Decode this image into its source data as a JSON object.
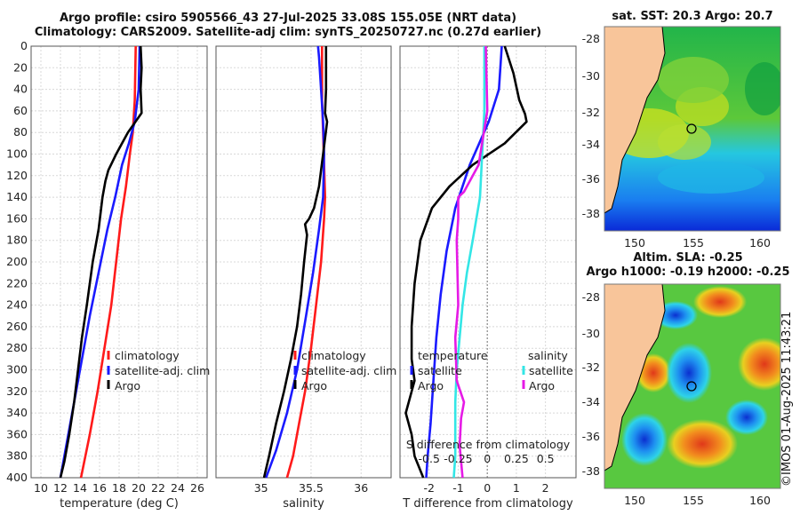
{
  "header": {
    "line1": "Argo profile: csiro 5905566_43 27-Jul-2025 33.08S 155.05E (NRT data)",
    "line2": "Climatology: CARS2009. Satellite-adj clim: synTS_20250727.nc (0.27d earlier)"
  },
  "colors": {
    "climatology": "#ff1a1a",
    "satellite": "#1a1aff",
    "argo": "#000000",
    "sat_salinity": "#33e6e6",
    "argo_salinity": "#e61ae6",
    "land": "#f8c59a"
  },
  "chart_data": [
    {
      "type": "line",
      "panel": "temperature",
      "xlabel": "temperature (deg C)",
      "ylabel": "",
      "xlim": [
        9,
        27
      ],
      "ylim": [
        400,
        0
      ],
      "xticks": [
        10,
        12,
        14,
        16,
        18,
        20,
        22,
        24,
        26
      ],
      "yticks": [
        0,
        20,
        40,
        60,
        80,
        100,
        120,
        140,
        160,
        180,
        200,
        220,
        240,
        260,
        280,
        300,
        320,
        340,
        360,
        380,
        400
      ],
      "series": [
        {
          "name": "climatology",
          "color": "#ff1a1a",
          "x": [
            19.7,
            19.6,
            19.4,
            19.1,
            18.7,
            18.2,
            17.7,
            17.2,
            16.5,
            15.8,
            15.0,
            14.1
          ],
          "y": [
            0,
            50,
            80,
            100,
            130,
            160,
            200,
            240,
            280,
            320,
            360,
            400
          ]
        },
        {
          "name": "satellite-adj. clim",
          "color": "#1a1aff",
          "x": [
            20.1,
            20.0,
            19.6,
            19.0,
            18.3,
            17.6,
            16.8,
            15.9,
            15.0,
            14.0,
            13.0,
            12.0
          ],
          "y": [
            0,
            40,
            70,
            90,
            110,
            140,
            170,
            210,
            250,
            300,
            350,
            400
          ]
        },
        {
          "name": "Argo",
          "color": "#000000",
          "x": [
            20.2,
            20.3,
            20.2,
            20.3,
            18.9,
            17.7,
            16.9,
            16.6,
            16.3,
            15.9,
            15.3,
            14.7,
            14.2,
            13.8,
            13.4,
            12.9,
            12.4,
            12.0
          ],
          "y": [
            0,
            20,
            40,
            62,
            80,
            100,
            115,
            125,
            140,
            170,
            200,
            240,
            270,
            300,
            330,
            360,
            385,
            400
          ]
        }
      ]
    },
    {
      "type": "line",
      "panel": "salinity",
      "xlabel": "salinity",
      "ylabel": "",
      "xlim": [
        34.55,
        36.3
      ],
      "xticks": [
        35,
        35.5,
        36
      ],
      "series": [
        {
          "name": "climatology",
          "color": "#ff1a1a",
          "x": [
            35.61,
            35.61,
            35.62,
            35.63,
            35.64,
            35.63,
            35.6,
            35.55,
            35.5,
            35.44,
            35.38,
            35.32,
            35.26
          ],
          "y": [
            0,
            50,
            80,
            110,
            140,
            160,
            200,
            240,
            280,
            320,
            350,
            380,
            400
          ]
        },
        {
          "name": "satellite-adj. clim",
          "color": "#1a1aff",
          "x": [
            35.57,
            35.58,
            35.6,
            35.62,
            35.63,
            35.62,
            35.58,
            35.52,
            35.45,
            35.36,
            35.26,
            35.15,
            35.05
          ],
          "y": [
            0,
            10,
            40,
            70,
            100,
            140,
            170,
            210,
            250,
            300,
            340,
            375,
            400
          ]
        },
        {
          "name": "Argo",
          "color": "#000000",
          "x": [
            35.65,
            35.65,
            35.64,
            35.66,
            35.62,
            35.58,
            35.53,
            35.48,
            35.44,
            35.46,
            35.43,
            35.4,
            35.36,
            35.3,
            35.23,
            35.15,
            35.08,
            35.03
          ],
          "y": [
            0,
            40,
            62,
            70,
            100,
            130,
            150,
            160,
            165,
            175,
            200,
            230,
            260,
            290,
            320,
            350,
            380,
            400
          ]
        }
      ]
    },
    {
      "type": "line",
      "panel": "difference",
      "xlabel": "T difference from climatology",
      "xlabel_top": "S difference from climatology",
      "xlim": [
        -3,
        3.05
      ],
      "xticks": [
        -2,
        -1,
        0,
        1,
        2
      ],
      "top_ticks": [
        -0.5,
        -0.25,
        0,
        0.25,
        0.5
      ],
      "series": [
        {
          "name": "temperature satellite",
          "color": "#1a1aff",
          "x": [
            0.5,
            0.4,
            0.05,
            -0.6,
            -1.1,
            -1.4,
            -1.6,
            -1.75,
            -1.85,
            -1.95,
            -2.05,
            -2.1
          ],
          "y": [
            0,
            40,
            70,
            110,
            150,
            190,
            230,
            270,
            310,
            350,
            380,
            400
          ]
        },
        {
          "name": "temperature Argo",
          "color": "#000000",
          "x": [
            0.6,
            0.9,
            1.1,
            1.3,
            1.35,
            0.6,
            -0.5,
            -1.3,
            -1.9,
            -2.3,
            -2.5,
            -2.6,
            -2.6,
            -2.5,
            -2.8,
            -2.6,
            -2.5,
            -2.2
          ],
          "y": [
            0,
            25,
            50,
            63,
            70,
            90,
            110,
            130,
            150,
            180,
            220,
            260,
            290,
            310,
            340,
            360,
            380,
            400
          ]
        },
        {
          "name": "salinity satellite",
          "color": "#33e6e6",
          "x": [
            -0.1,
            -0.1,
            -0.25,
            -0.5,
            -0.7,
            -0.85,
            -0.95,
            -1.05,
            -1.1,
            -1.1,
            -1.1,
            -1.15
          ],
          "y": [
            0,
            60,
            140,
            180,
            210,
            240,
            270,
            300,
            330,
            360,
            380,
            400
          ]
        },
        {
          "name": "salinity Argo",
          "color": "#e61ae6",
          "x": [
            -0.05,
            0.0,
            -0.3,
            -0.8,
            -1.0,
            -1.0,
            -1.05,
            -1.0,
            -1.1,
            -1.05,
            -0.8,
            -0.9,
            -0.95,
            -0.85
          ],
          "y": [
            0,
            60,
            110,
            135,
            140,
            160,
            180,
            240,
            270,
            310,
            330,
            345,
            370,
            400
          ]
        }
      ]
    }
  ],
  "legend_left": [
    "climatology",
    "satellite-adj. clim",
    "Argo"
  ],
  "legend_diff_t": [
    "temperature",
    "satellite",
    "Argo"
  ],
  "legend_diff_s": [
    "salinity",
    "satellite",
    "Argo"
  ],
  "maps": [
    {
      "title": "sat. SST: 20.3 Argo: 20.7",
      "xticks": [
        150,
        155,
        160
      ],
      "yticks": [
        -28,
        -30,
        -32,
        -34,
        -36,
        -38
      ],
      "float_lon": 155.05,
      "float_lat": -33.08
    },
    {
      "title": "Altim. SLA: -0.25\nArgo h1000: -0.19 h2000: -0.25",
      "xticks": [
        150,
        155,
        160
      ],
      "yticks": [
        -28,
        -30,
        -32,
        -34,
        -36,
        -38
      ],
      "float_lon": 155.05,
      "float_lat": -33.08
    }
  ],
  "credit": "©IMOS 01-Aug-2025 11:43:21"
}
